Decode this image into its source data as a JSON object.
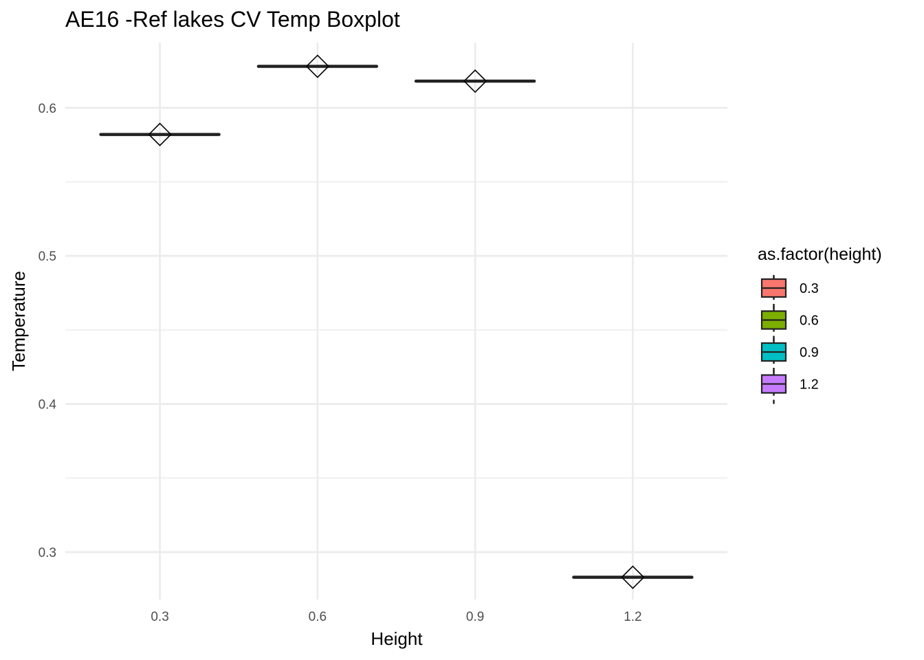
{
  "chart_data": {
    "type": "box",
    "title": "AE16 -Ref lakes CV Temp Boxplot",
    "xlabel": "Height",
    "ylabel": "Temperature",
    "categories": [
      "0.3",
      "0.6",
      "0.9",
      "1.2"
    ],
    "y_ticks": [
      "0.3",
      "0.4",
      "0.5",
      "0.6"
    ],
    "ylim": [
      0.268,
      0.644
    ],
    "series": [
      {
        "category": "0.3",
        "median": 0.582,
        "mean": 0.582,
        "fill": "#F8766D"
      },
      {
        "category": "0.6",
        "median": 0.628,
        "mean": 0.628,
        "fill": "#7CAE00"
      },
      {
        "category": "0.9",
        "median": 0.618,
        "mean": 0.618,
        "fill": "#00BFC4"
      },
      {
        "category": "1.2",
        "median": 0.283,
        "mean": 0.283,
        "fill": "#C77CFF"
      }
    ],
    "legend": {
      "title": "as.factor(height)",
      "position": "right",
      "entries": [
        {
          "label": "0.3",
          "color": "#F8766D"
        },
        {
          "label": "0.6",
          "color": "#7CAE00"
        },
        {
          "label": "0.9",
          "color": "#00BFC4"
        },
        {
          "label": "1.2",
          "color": "#C77CFF"
        }
      ]
    },
    "grid": true,
    "colors": {
      "grid": "#EBEBEB",
      "box_line": "#222222",
      "mean_marker": "#000000"
    }
  }
}
